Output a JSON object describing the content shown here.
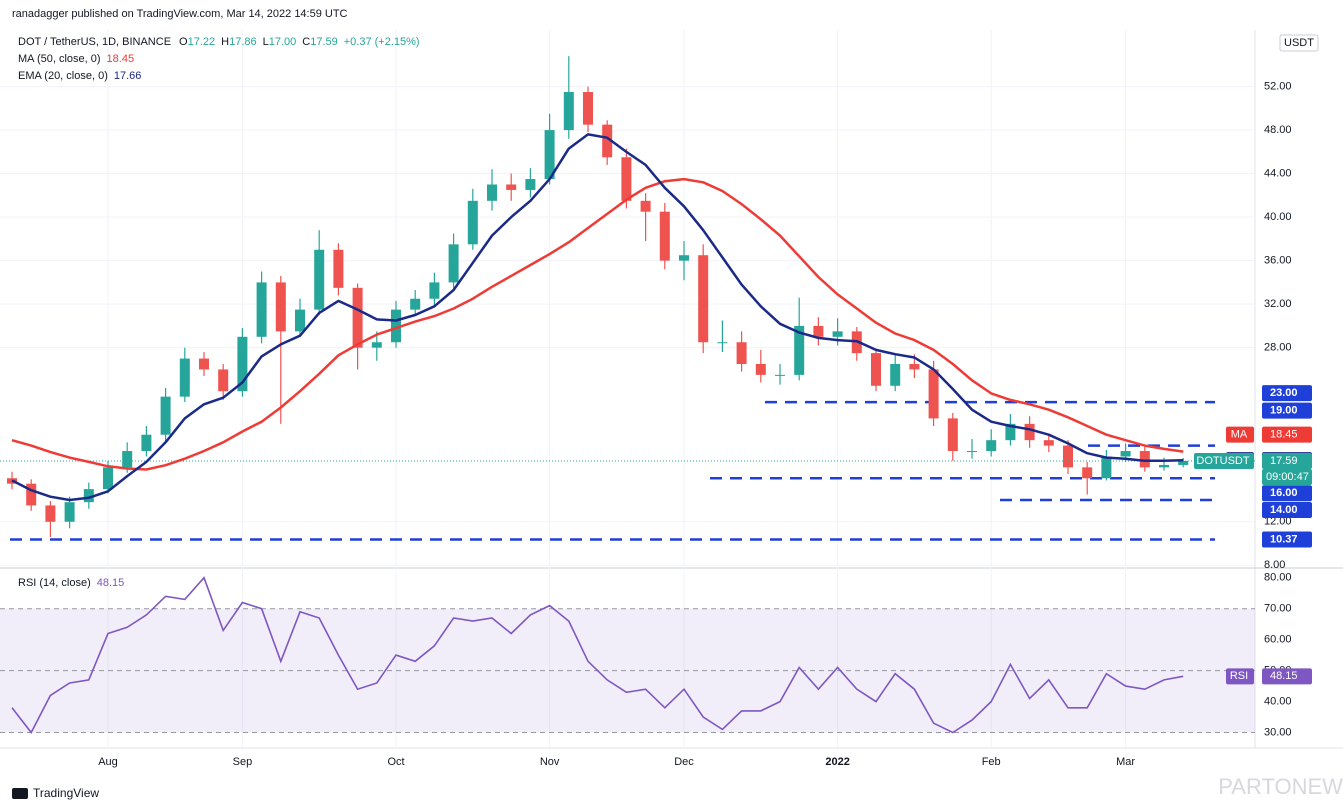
{
  "header": {
    "publisher": "ranadagger published on TradingView.com, Mar 14, 2022 14:59 UTC"
  },
  "chart_data": [
    {
      "type": "candlestick",
      "title": "DOT / TetherUS, 1D, BINANCE",
      "ohlc_legend": [
        {
          "label": "O",
          "value": "17.22"
        },
        {
          "label": "H",
          "value": "17.86"
        },
        {
          "label": "L",
          "value": "17.00"
        },
        {
          "label": "C",
          "value": "17.59"
        }
      ],
      "change": "+0.37 (+2.15%)",
      "symbol": "DOTUSDT",
      "countdown": "09:00:47",
      "currency": "USDT",
      "categories": [
        null,
        null,
        null,
        null,
        null,
        "Aug",
        null,
        null,
        null,
        null,
        null,
        null,
        "Sep",
        null,
        null,
        null,
        null,
        null,
        null,
        null,
        "Oct",
        null,
        null,
        null,
        null,
        null,
        null,
        null,
        "Nov",
        null,
        null,
        null,
        null,
        null,
        null,
        "Dec",
        null,
        null,
        null,
        null,
        null,
        null,
        null,
        "2022",
        null,
        null,
        null,
        null,
        null,
        null,
        null,
        "Feb",
        null,
        null,
        null,
        null,
        null,
        null,
        "Mar",
        null,
        null,
        null
      ],
      "open": [
        16.0,
        15.5,
        13.5,
        12.0,
        13.8,
        15.0,
        17.0,
        18.5,
        20.0,
        23.5,
        27.0,
        26.0,
        24.0,
        29.0,
        34.0,
        29.5,
        31.5,
        37.0,
        33.5,
        28.0,
        28.5,
        31.5,
        32.5,
        34.0,
        37.5,
        41.5,
        43.0,
        42.5,
        43.5,
        48.0,
        51.5,
        48.5,
        45.5,
        41.5,
        40.5,
        36.0,
        36.5,
        28.5,
        28.5,
        26.5,
        25.5,
        25.5,
        30.0,
        29.0,
        29.5,
        27.5,
        24.5,
        26.5,
        26.0,
        21.5,
        18.5,
        18.5,
        19.5,
        21.0,
        19.5,
        19.0,
        17.0,
        16.0,
        18.0,
        18.5,
        17.0,
        17.22
      ],
      "high": [
        16.6,
        15.9,
        13.9,
        14.3,
        15.6,
        17.6,
        19.3,
        20.8,
        24.3,
        28.0,
        27.6,
        26.5,
        29.8,
        35.0,
        34.6,
        32.5,
        38.8,
        37.6,
        33.9,
        29.5,
        32.3,
        33.3,
        34.9,
        38.5,
        42.6,
        44.4,
        44.0,
        44.5,
        49.5,
        54.8,
        52.0,
        48.9,
        46.3,
        42.2,
        41.3,
        37.8,
        37.5,
        30.5,
        29.5,
        27.8,
        26.5,
        32.6,
        30.8,
        30.7,
        29.9,
        27.9,
        27.4,
        27.4,
        26.8,
        22.0,
        19.6,
        20.5,
        21.9,
        21.7,
        20.0,
        19.5,
        17.5,
        18.6,
        19.2,
        18.9,
        17.9,
        17.86
      ],
      "low": [
        15.0,
        13.0,
        10.6,
        11.4,
        13.2,
        14.6,
        16.5,
        18.0,
        19.4,
        23.0,
        25.4,
        23.2,
        23.5,
        28.4,
        21.0,
        29.0,
        31.0,
        32.8,
        26.0,
        26.8,
        28.0,
        31.0,
        31.8,
        33.5,
        37.0,
        40.6,
        41.5,
        41.8,
        43.0,
        47.2,
        47.8,
        44.8,
        40.8,
        37.8,
        35.2,
        34.2,
        27.5,
        27.6,
        25.8,
        24.8,
        24.6,
        25.0,
        28.2,
        28.2,
        26.8,
        24.0,
        24.0,
        25.2,
        20.8,
        17.6,
        17.8,
        18.0,
        19.0,
        18.8,
        18.4,
        16.4,
        14.5,
        15.8,
        17.5,
        16.6,
        16.7,
        17.0
      ],
      "close": [
        15.5,
        13.5,
        12.0,
        13.8,
        15.0,
        17.0,
        18.5,
        20.0,
        23.5,
        27.0,
        26.0,
        24.0,
        29.0,
        34.0,
        29.5,
        31.5,
        37.0,
        33.5,
        28.0,
        28.5,
        31.5,
        32.5,
        34.0,
        37.5,
        41.5,
        43.0,
        42.5,
        43.5,
        48.0,
        51.5,
        48.5,
        45.5,
        41.5,
        40.5,
        36.0,
        36.5,
        28.5,
        28.5,
        26.5,
        25.5,
        25.5,
        30.0,
        29.0,
        29.5,
        27.5,
        24.5,
        26.5,
        26.0,
        21.5,
        18.5,
        18.5,
        19.5,
        21.0,
        19.5,
        19.0,
        17.0,
        16.0,
        18.0,
        18.5,
        17.0,
        17.22,
        17.59
      ],
      "up_color": "#26a69a",
      "down_color": "#ef5350",
      "series": [
        {
          "name": "MA (50, close, 0)",
          "tag": "MA",
          "color": "#ef3b36",
          "values": [
            19.5,
            19.0,
            18.4,
            17.9,
            17.5,
            17.1,
            16.9,
            16.8,
            17.2,
            17.8,
            18.5,
            19.3,
            20.3,
            21.2,
            22.5,
            24.0,
            25.6,
            27.3,
            28.3,
            29.2,
            29.8,
            30.4,
            30.9,
            31.6,
            32.5,
            33.6,
            34.6,
            35.6,
            36.6,
            37.7,
            39.0,
            40.3,
            41.6,
            42.7,
            43.3,
            43.5,
            43.2,
            42.4,
            41.2,
            39.8,
            38.3,
            36.4,
            34.5,
            32.9,
            31.6,
            30.3,
            29.3,
            28.7,
            27.8,
            26.5,
            25.0,
            23.8,
            23.2,
            22.8,
            22.3,
            21.6,
            20.8,
            20.0,
            19.5,
            19.0,
            18.7,
            18.45
          ]
        },
        {
          "name": "EMA (20, close, 0)",
          "tag": "EMA",
          "color": "#1b2a88",
          "values": [
            15.8,
            14.9,
            14.3,
            14.0,
            14.2,
            14.8,
            16.2,
            17.5,
            19.3,
            21.5,
            22.8,
            23.4,
            24.8,
            27.2,
            28.3,
            29.1,
            31.2,
            32.3,
            31.5,
            30.6,
            30.5,
            31.0,
            31.8,
            33.3,
            35.8,
            38.3,
            40.0,
            41.5,
            43.5,
            46.3,
            47.6,
            47.3,
            46.0,
            44.8,
            42.7,
            41.0,
            38.8,
            36.3,
            33.8,
            31.8,
            30.2,
            29.4,
            28.9,
            28.7,
            28.6,
            27.8,
            27.4,
            27.1,
            26.0,
            24.2,
            22.3,
            21.2,
            20.8,
            20.5,
            20.0,
            19.2,
            18.3,
            17.9,
            17.8,
            17.6,
            17.6,
            17.66
          ]
        }
      ],
      "levels": [
        {
          "value": 23,
          "label": "23.00"
        },
        {
          "value": 19,
          "label": "19.00"
        },
        {
          "value": 16,
          "label": "16.00"
        },
        {
          "value": 14,
          "label": "14.00"
        },
        {
          "value": 10.37,
          "label": "10.37"
        }
      ],
      "level_color": "#1e3fd8",
      "ylim": [
        7.75,
        57.2
      ],
      "yticks": [
        {
          "value": 8,
          "label": "8.00"
        },
        {
          "value": 12,
          "label": "12.00"
        },
        {
          "value": 28,
          "label": "28.00"
        },
        {
          "value": 32,
          "label": "32.00"
        },
        {
          "value": 36,
          "label": "36.00"
        },
        {
          "value": 40,
          "label": "40.00"
        },
        {
          "value": 44,
          "label": "44.00"
        },
        {
          "value": 48,
          "label": "48.00"
        },
        {
          "value": 52,
          "label": "52.00"
        }
      ],
      "grid": true
    },
    {
      "type": "line",
      "series": [
        {
          "name": "RSI (14, close)",
          "tag": "RSI",
          "color": "#7e57c2",
          "values": [
            38,
            30,
            42,
            46,
            47,
            62,
            64,
            68,
            74,
            73,
            80,
            63,
            72,
            70,
            53,
            69,
            67,
            55,
            44,
            46,
            55,
            53,
            58,
            67,
            66,
            67,
            62,
            68,
            71,
            66,
            53,
            47,
            43,
            44,
            38,
            44,
            35,
            31,
            37,
            37,
            40,
            51,
            44,
            51,
            44,
            40,
            49,
            44,
            33,
            30,
            34,
            40,
            52,
            41,
            47,
            38,
            38,
            49,
            45,
            44,
            47,
            48.15
          ]
        }
      ],
      "band": [
        30,
        70
      ],
      "midline": 50,
      "ylim": [
        25,
        82.5
      ],
      "yticks": [
        {
          "value": 30,
          "label": "30.00"
        },
        {
          "value": 40,
          "label": "40.00"
        },
        {
          "value": 50,
          "label": "50.00"
        },
        {
          "value": 60,
          "label": "60.00"
        },
        {
          "value": 70,
          "label": "70.00"
        },
        {
          "value": 80,
          "label": "80.00"
        }
      ],
      "grid": true
    }
  ],
  "footer": {
    "brand": "TradingView",
    "watermark": "PARTONEWS.IR"
  }
}
